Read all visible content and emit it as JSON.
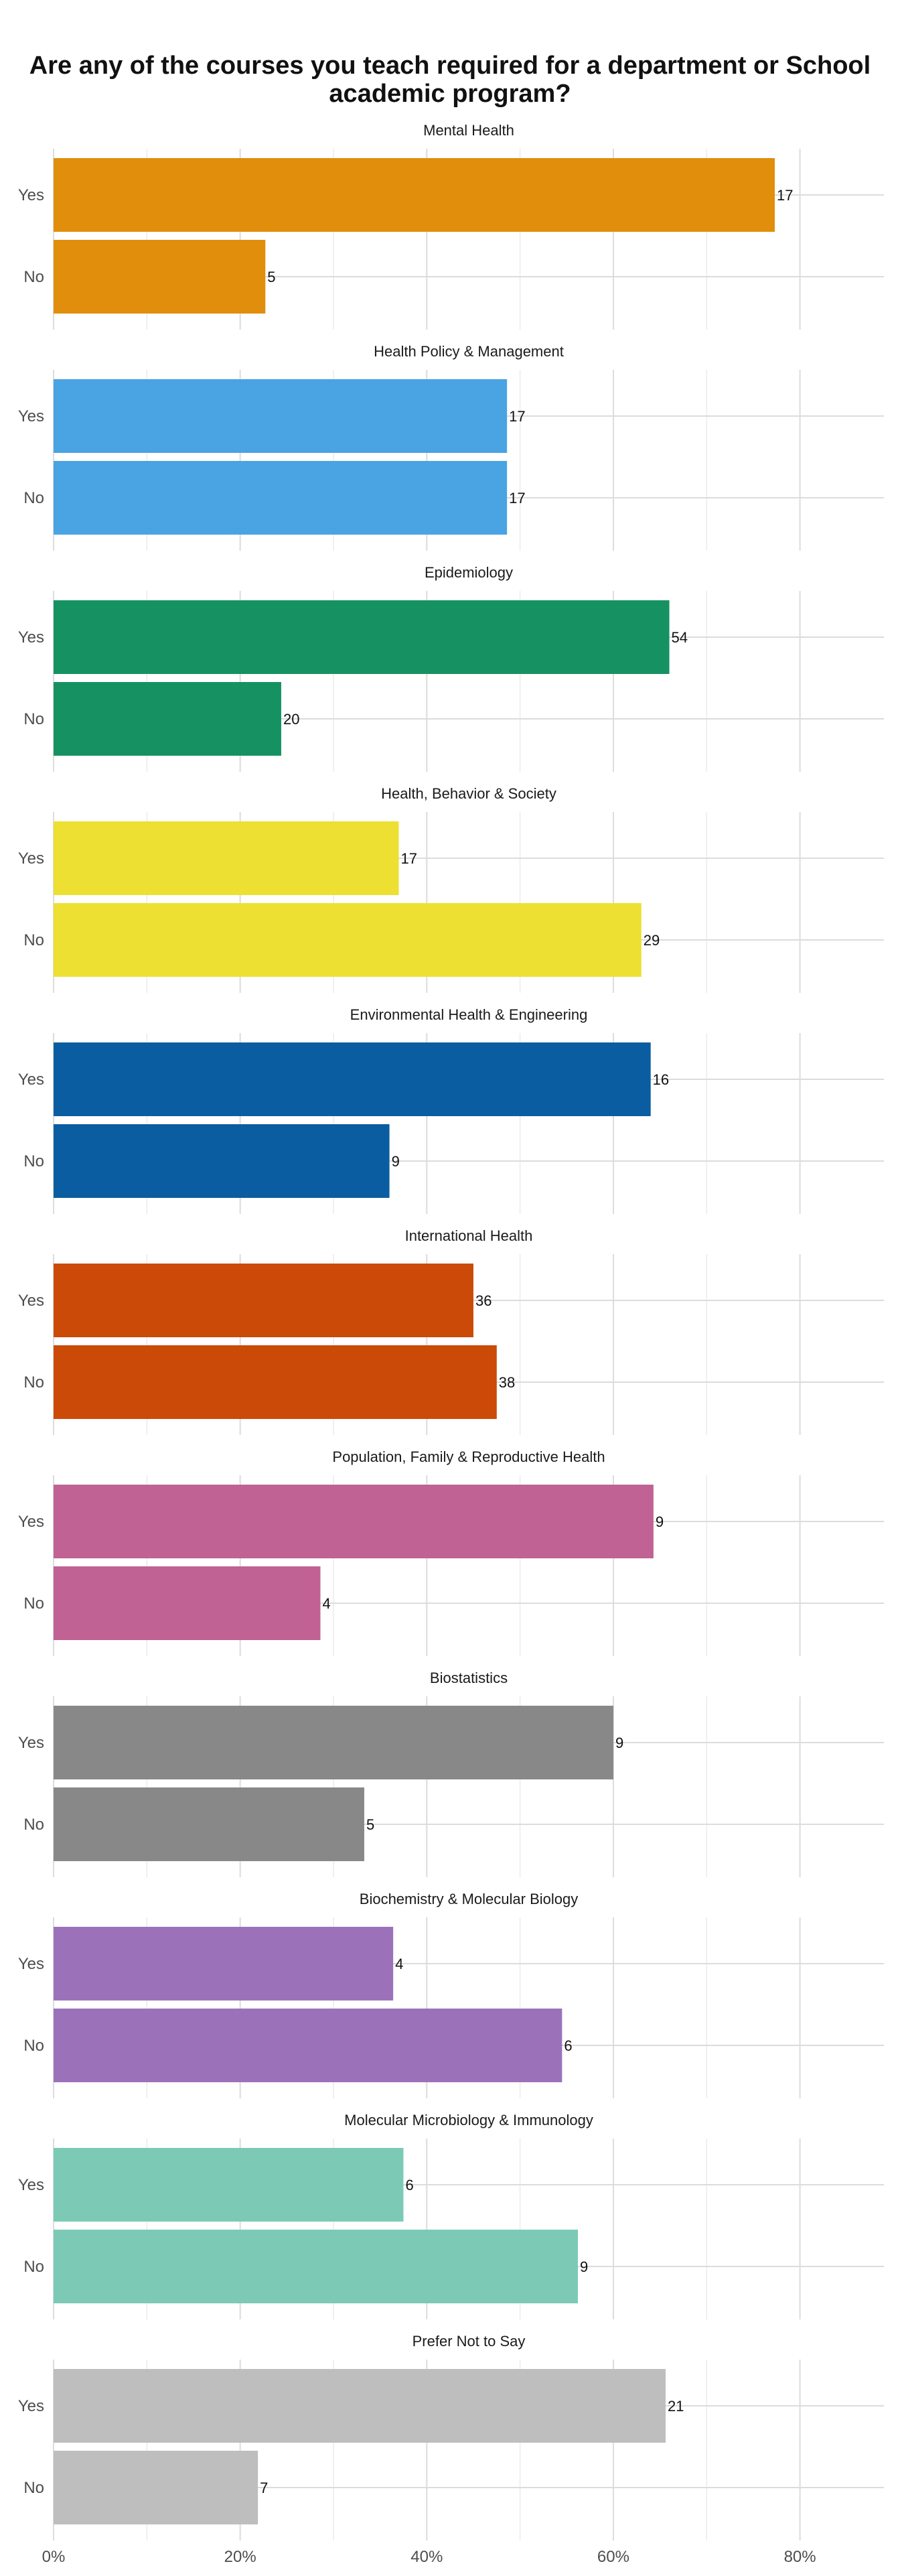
{
  "chart_data": {
    "type": "bar",
    "orientation": "horizontal",
    "title": "Are any of the courses you teach required for a department or School academic program?",
    "title_lines": [
      "Are any of the courses you teach required for a department or School",
      "academic program?"
    ],
    "xlabel": "",
    "ylabel": "",
    "x_axis": {
      "ticks": [
        0,
        20,
        40,
        60,
        80
      ],
      "tick_labels": [
        "0%",
        "20%",
        "40%",
        "60%",
        "80%"
      ],
      "xlim": [
        0,
        89
      ]
    },
    "grid": true,
    "legend": "none",
    "categories": [
      "Yes",
      "No"
    ],
    "panels": [
      {
        "title": "Mental Health",
        "color": "#E08E0B",
        "bars": [
          {
            "category": "Yes",
            "percent": 77.3,
            "label": "17"
          },
          {
            "category": "No",
            "percent": 22.7,
            "label": "5"
          }
        ]
      },
      {
        "title": "Health Policy & Management",
        "color": "#4AA3E2",
        "bars": [
          {
            "category": "Yes",
            "percent": 48.6,
            "label": "17"
          },
          {
            "category": "No",
            "percent": 48.6,
            "label": "17"
          }
        ]
      },
      {
        "title": "Epidemiology",
        "color": "#169262",
        "bars": [
          {
            "category": "Yes",
            "percent": 66.0,
            "label": "54"
          },
          {
            "category": "No",
            "percent": 24.4,
            "label": "20"
          }
        ]
      },
      {
        "title": "Health, Behavior & Society",
        "color": "#EDE032",
        "bars": [
          {
            "category": "Yes",
            "percent": 37.0,
            "label": "17"
          },
          {
            "category": "No",
            "percent": 63.0,
            "label": "29"
          }
        ]
      },
      {
        "title": "Environmental Health & Engineering",
        "color": "#0B5DA1",
        "bars": [
          {
            "category": "Yes",
            "percent": 64.0,
            "label": "16"
          },
          {
            "category": "No",
            "percent": 36.0,
            "label": "9"
          }
        ]
      },
      {
        "title": "International Health",
        "color": "#CB4A07",
        "bars": [
          {
            "category": "Yes",
            "percent": 45.0,
            "label": "36"
          },
          {
            "category": "No",
            "percent": 47.5,
            "label": "38"
          }
        ]
      },
      {
        "title": "Population, Family & Reproductive Health",
        "color": "#C06293",
        "bars": [
          {
            "category": "Yes",
            "percent": 64.3,
            "label": "9"
          },
          {
            "category": "No",
            "percent": 28.6,
            "label": "4"
          }
        ]
      },
      {
        "title": "Biostatistics",
        "color": "#888888",
        "bars": [
          {
            "category": "Yes",
            "percent": 60.0,
            "label": "9"
          },
          {
            "category": "No",
            "percent": 33.3,
            "label": "5"
          }
        ]
      },
      {
        "title": "Biochemistry & Molecular Biology",
        "color": "#9B72BA",
        "bars": [
          {
            "category": "Yes",
            "percent": 36.4,
            "label": "4"
          },
          {
            "category": "No",
            "percent": 54.5,
            "label": "6"
          }
        ]
      },
      {
        "title": "Molecular Microbiology & Immunology",
        "color": "#7CCAB6",
        "bars": [
          {
            "category": "Yes",
            "percent": 37.5,
            "label": "6"
          },
          {
            "category": "No",
            "percent": 56.2,
            "label": "9"
          }
        ]
      },
      {
        "title": "Prefer Not to Say",
        "color": "#BEBEBE",
        "bars": [
          {
            "category": "Yes",
            "percent": 65.6,
            "label": "21"
          },
          {
            "category": "No",
            "percent": 21.9,
            "label": "7"
          }
        ]
      }
    ]
  }
}
